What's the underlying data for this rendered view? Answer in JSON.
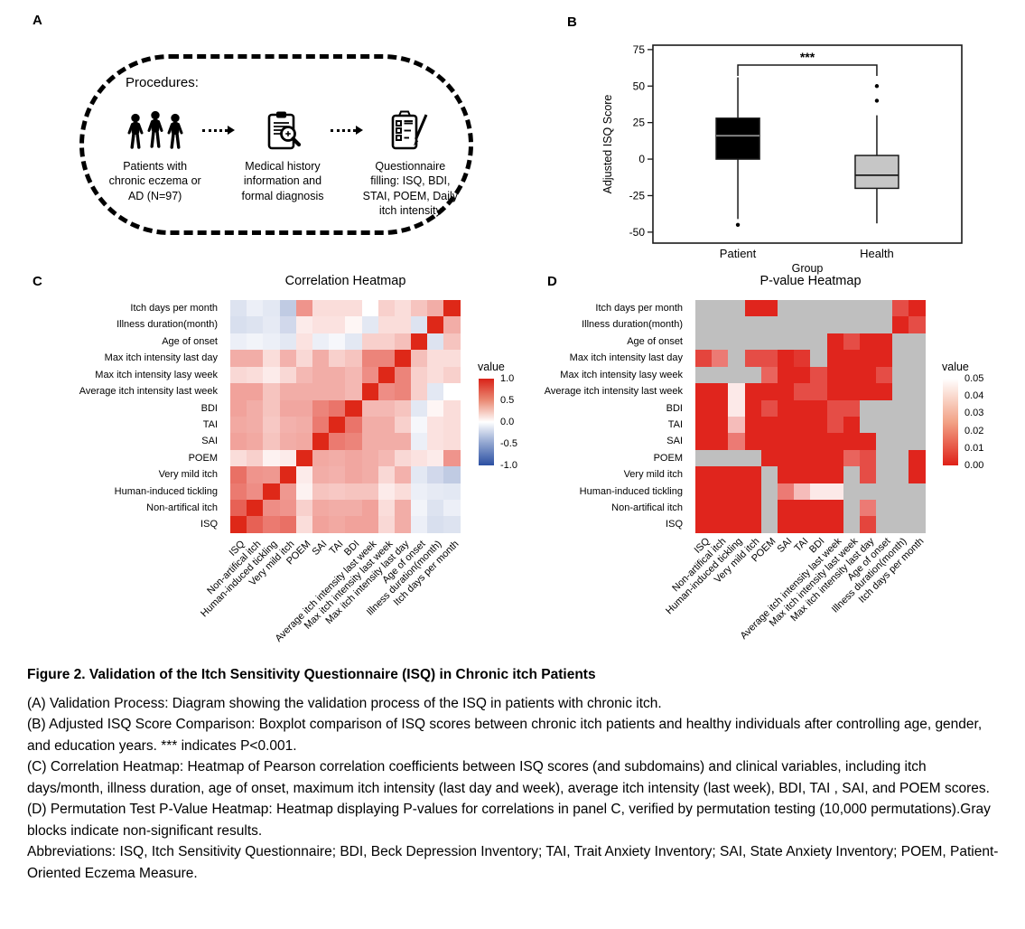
{
  "panels": {
    "a": {
      "letter": "A",
      "box_title": "Procedures:",
      "steps": [
        {
          "icon": "patients-group-icon",
          "label": "Patients with chronic eczema or AD (N=97)"
        },
        {
          "icon": "medical-record-magnifier-icon",
          "label": "Medical history information and formal diagnosis"
        },
        {
          "icon": "questionnaire-checklist-pencil-icon",
          "label": "Questionnaire filling: ISQ, BDI, STAI, POEM, Daily itch intensity"
        }
      ]
    },
    "b": {
      "letter": "B"
    },
    "c": {
      "letter": "C"
    },
    "d": {
      "letter": "D"
    }
  },
  "chart_data": [
    {
      "type": "boxplot",
      "panel": "B",
      "xlabel": "Group",
      "ylabel": "Adjusted ISQ Score",
      "yticks": [
        75,
        50,
        25,
        0,
        -25,
        -50
      ],
      "ylim": [
        -57.5,
        78
      ],
      "categories": [
        "Patient",
        "Health"
      ],
      "boxes": [
        {
          "group": "Patient",
          "fill": "#000000",
          "q1": 0,
          "median": 16,
          "q3": 28,
          "whisker_low": -41,
          "whisker_high": 56,
          "outliers": [
            -45
          ]
        },
        {
          "group": "Health",
          "fill": "#c6c6c6",
          "q1": -20,
          "median": -11,
          "q3": 2.5,
          "whisker_low": -44,
          "whisker_high": 30,
          "outliers": [
            50,
            40
          ]
        }
      ],
      "significance": {
        "label": "***",
        "meaning": "P<0.001"
      }
    },
    {
      "type": "heatmap",
      "panel": "C",
      "title": "Correlation Heatmap",
      "legend_title": "value",
      "legend_ticks": [
        "1.0",
        "0.5",
        "0.0",
        "-0.5",
        "-1.0"
      ],
      "legend_gradient": [
        "#d92218",
        "#ea8a74",
        "#ffffff",
        "#8ea3cf",
        "#2b4fa2"
      ],
      "color_scale": {
        "positive": "#de2818",
        "zero": "#ffffff",
        "negative": "#2b4fa2"
      },
      "rows_top_to_bottom": [
        "Itch days per month",
        "Illness duration(month)",
        "Age of onset",
        "Max itch intensity last day",
        "Max itch intensity lasy week",
        "Average itch intensity last week",
        "BDI",
        "TAI",
        "SAI",
        "POEM",
        "Very mild itch",
        "Human-induced tickling",
        "Non-artifical itch",
        "ISQ"
      ],
      "cols_left_to_right": [
        "ISQ",
        "Non-artifical itch",
        "Human-induced tickling",
        "Very mild itch",
        "POEM",
        "SAI",
        "TAI",
        "BDI",
        "Average itch intensity last week",
        "Max itch intensity last week",
        "Max itch intensity last day",
        "Age of onset",
        "Illness duration(month)",
        "Itch days per month"
      ],
      "values": [
        [
          -0.1,
          -0.05,
          -0.08,
          -0.22,
          0.42,
          0.1,
          0.1,
          0.1,
          0.0,
          0.15,
          0.1,
          0.2,
          0.3,
          1.0
        ],
        [
          -0.12,
          -0.1,
          -0.07,
          -0.15,
          0.05,
          0.08,
          0.08,
          0.02,
          -0.08,
          0.1,
          0.1,
          -0.1,
          1.0,
          0.3
        ],
        [
          -0.05,
          -0.03,
          -0.05,
          -0.08,
          0.08,
          -0.05,
          -0.02,
          -0.08,
          0.15,
          0.15,
          0.22,
          1.0,
          -0.1,
          0.2
        ],
        [
          0.3,
          0.3,
          0.1,
          0.28,
          0.12,
          0.3,
          0.15,
          0.2,
          0.5,
          0.5,
          1.0,
          0.22,
          0.1,
          0.1
        ],
        [
          0.12,
          0.1,
          0.05,
          0.12,
          0.25,
          0.3,
          0.3,
          0.25,
          0.45,
          1.0,
          0.5,
          0.15,
          0.1,
          0.15
        ],
        [
          0.35,
          0.35,
          0.2,
          0.3,
          0.3,
          0.3,
          0.3,
          0.25,
          1.0,
          0.45,
          0.5,
          0.15,
          -0.08,
          0.0
        ],
        [
          0.35,
          0.3,
          0.2,
          0.33,
          0.33,
          0.5,
          0.58,
          1.0,
          0.25,
          0.25,
          0.2,
          -0.08,
          0.02,
          0.1
        ],
        [
          0.32,
          0.3,
          0.18,
          0.28,
          0.3,
          0.55,
          1.0,
          0.58,
          0.3,
          0.3,
          0.15,
          -0.02,
          0.08,
          0.1
        ],
        [
          0.35,
          0.32,
          0.2,
          0.3,
          0.32,
          1.0,
          0.55,
          0.5,
          0.3,
          0.3,
          0.3,
          -0.05,
          0.08,
          0.1
        ],
        [
          0.1,
          0.15,
          0.03,
          0.05,
          1.0,
          0.32,
          0.3,
          0.33,
          0.3,
          0.25,
          0.12,
          0.08,
          0.05,
          0.42
        ],
        [
          0.6,
          0.42,
          0.4,
          1.0,
          0.05,
          0.3,
          0.28,
          0.33,
          0.3,
          0.12,
          0.28,
          -0.08,
          -0.15,
          -0.22
        ],
        [
          0.55,
          0.45,
          1.0,
          0.4,
          0.03,
          0.2,
          0.18,
          0.2,
          0.2,
          0.05,
          0.1,
          -0.05,
          -0.07,
          -0.08
        ],
        [
          0.68,
          1.0,
          0.45,
          0.42,
          0.15,
          0.32,
          0.3,
          0.3,
          0.35,
          0.1,
          0.3,
          -0.03,
          -0.1,
          -0.05
        ],
        [
          1.0,
          0.68,
          0.55,
          0.6,
          0.1,
          0.35,
          0.32,
          0.35,
          0.35,
          0.12,
          0.3,
          -0.05,
          -0.12,
          -0.1
        ]
      ]
    },
    {
      "type": "heatmap",
      "panel": "D",
      "title": "P-value Heatmap",
      "legend_title": "value",
      "legend_ticks": [
        "0.05",
        "0.04",
        "0.03",
        "0.02",
        "0.01",
        "0.00"
      ],
      "legend_gradient": [
        "#ffffff",
        "#f2a286",
        "#df2118"
      ],
      "color_scale": {
        "low": "#df2118",
        "high": "#ffffff"
      },
      "na_color": "#bfbfbf",
      "na_meaning": "non-significant",
      "rows_top_to_bottom": [
        "Itch days per month",
        "Illness duration(month)",
        "Age of onset",
        "Max itch intensity last day",
        "Max itch intensity lasy week",
        "Average itch intensity last week",
        "BDI",
        "TAI",
        "SAI",
        "POEM",
        "Very mild itch",
        "Human-induced tickling",
        "Non-artifical itch",
        "ISQ"
      ],
      "cols_left_to_right": [
        "ISQ",
        "Non-artifical itch",
        "Human-induced tickling",
        "Very mild itch",
        "POEM",
        "SAI",
        "TAI",
        "BDI",
        "Average itch intensity last week",
        "Max itch intensity last week",
        "Max itch intensity last day",
        "Age of onset",
        "Illness duration(month)",
        "Itch days per month"
      ],
      "values": [
        [
          null,
          null,
          null,
          0.001,
          0.001,
          null,
          null,
          null,
          null,
          null,
          null,
          null,
          0.01,
          0.001
        ],
        [
          null,
          null,
          null,
          null,
          null,
          null,
          null,
          null,
          null,
          null,
          null,
          null,
          0.001,
          0.01
        ],
        [
          null,
          null,
          null,
          null,
          null,
          null,
          null,
          null,
          0.001,
          0.01,
          0.001,
          0.001,
          null,
          null
        ],
        [
          0.008,
          0.02,
          null,
          0.01,
          0.01,
          0.001,
          0.005,
          null,
          0.001,
          0.001,
          0.001,
          0.001,
          null,
          null
        ],
        [
          null,
          null,
          null,
          null,
          0.015,
          0.001,
          0.001,
          0.01,
          0.001,
          0.001,
          0.001,
          0.01,
          null,
          null
        ],
        [
          0.001,
          0.001,
          0.045,
          0.001,
          0.001,
          0.001,
          0.01,
          0.01,
          0.001,
          0.001,
          0.001,
          0.001,
          null,
          null
        ],
        [
          0.001,
          0.001,
          0.045,
          0.001,
          0.01,
          0.001,
          0.001,
          0.001,
          0.01,
          0.01,
          null,
          null,
          null,
          null
        ],
        [
          0.001,
          0.001,
          0.035,
          0.001,
          0.001,
          0.001,
          0.001,
          0.001,
          0.01,
          0.001,
          null,
          null,
          null,
          null
        ],
        [
          0.001,
          0.001,
          0.02,
          0.001,
          0.001,
          0.001,
          0.001,
          0.001,
          0.001,
          0.001,
          0.001,
          null,
          null,
          null
        ],
        [
          null,
          null,
          null,
          null,
          0.001,
          0.001,
          0.001,
          0.001,
          0.001,
          0.015,
          0.01,
          null,
          null,
          0.001
        ],
        [
          0.001,
          0.001,
          0.001,
          0.001,
          null,
          0.001,
          0.001,
          0.001,
          0.001,
          null,
          0.01,
          null,
          null,
          0.001
        ],
        [
          0.001,
          0.001,
          0.001,
          0.001,
          null,
          0.02,
          0.035,
          0.045,
          0.045,
          null,
          null,
          null,
          null,
          null
        ],
        [
          0.001,
          0.001,
          0.001,
          0.001,
          null,
          0.001,
          0.001,
          0.001,
          0.001,
          null,
          0.02,
          null,
          null,
          null
        ],
        [
          0.001,
          0.001,
          0.001,
          0.001,
          null,
          0.001,
          0.001,
          0.001,
          0.001,
          null,
          0.008,
          null,
          null,
          null
        ]
      ]
    }
  ],
  "caption": {
    "title": "Figure 2. Validation of the Itch Sensitivity Questionnaire (ISQ) in Chronic itch Patients",
    "lines": [
      "(A) Validation Process: Diagram showing the validation process of the ISQ in patients with chronic itch.",
      "(B) Adjusted ISQ Score Comparison: Boxplot comparison of ISQ scores between chronic itch patients and healthy individuals after controlling age, gender, and education years. *** indicates P<0.001.",
      "(C) Correlation Heatmap: Heatmap of Pearson correlation coefficients between ISQ scores (and subdomains) and clinical variables, including itch days/month, illness duration, age of onset, maximum itch intensity (last day and week), average itch intensity (last week), BDI, TAI , SAI, and POEM scores.",
      "(D) Permutation Test P-Value Heatmap: Heatmap displaying P-values for correlations in panel C, verified by permutation testing (10,000 permutations).Gray blocks indicate non-significant results.",
      "Abbreviations: ISQ, Itch Sensitivity Questionnaire; BDI, Beck Depression Inventory; TAI, Trait Anxiety Inventory; SAI, State Anxiety Inventory; POEM, Patient-Oriented Eczema Measure."
    ]
  }
}
